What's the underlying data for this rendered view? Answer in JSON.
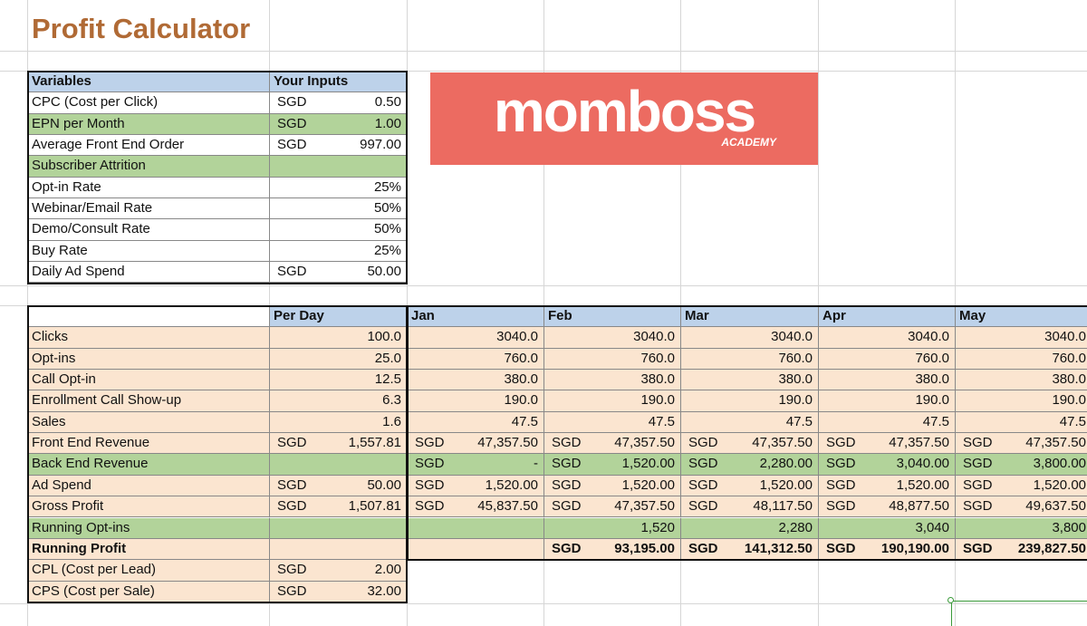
{
  "title": "Profit Calculator",
  "logo": {
    "main": "momboss",
    "sub": "ACADEMY"
  },
  "variables": {
    "header": [
      "Variables",
      "Your Inputs"
    ],
    "rows": [
      {
        "label": "CPC (Cost per Click)",
        "cur": "SGD",
        "value": "0.50",
        "style": "wht"
      },
      {
        "label": "EPN per Month",
        "cur": "SGD",
        "value": "1.00",
        "style": "grn"
      },
      {
        "label": "Average Front End Order",
        "cur": "SGD",
        "value": "997.00",
        "style": "wht"
      },
      {
        "label": "Subscriber Attrition",
        "cur": "",
        "value": "",
        "style": "grn"
      },
      {
        "label": "Opt-in Rate",
        "cur": "",
        "value": "25%",
        "style": "wht"
      },
      {
        "label": "Webinar/Email Rate",
        "cur": "",
        "value": "50%",
        "style": "wht"
      },
      {
        "label": "Demo/Consult Rate",
        "cur": "",
        "value": "50%",
        "style": "wht"
      },
      {
        "label": "Buy Rate",
        "cur": "",
        "value": "25%",
        "style": "wht"
      },
      {
        "label": "Daily Ad Spend",
        "cur": "SGD",
        "value": "50.00",
        "style": "wht"
      }
    ]
  },
  "projection": {
    "headers": [
      "Per Day",
      "Jan",
      "Feb",
      "Mar",
      "Apr",
      "May"
    ],
    "rows": [
      {
        "label": "Clicks",
        "style": "org",
        "bold": false,
        "cells": [
          [
            "",
            "100.0"
          ],
          [
            "",
            "3040.0"
          ],
          [
            "",
            "3040.0"
          ],
          [
            "",
            "3040.0"
          ],
          [
            "",
            "3040.0"
          ],
          [
            "",
            "3040.0"
          ]
        ]
      },
      {
        "label": "Opt-ins",
        "style": "org",
        "bold": false,
        "cells": [
          [
            "",
            "25.0"
          ],
          [
            "",
            "760.0"
          ],
          [
            "",
            "760.0"
          ],
          [
            "",
            "760.0"
          ],
          [
            "",
            "760.0"
          ],
          [
            "",
            "760.0"
          ]
        ]
      },
      {
        "label": "Call Opt-in",
        "style": "org",
        "bold": false,
        "cells": [
          [
            "",
            "12.5"
          ],
          [
            "",
            "380.0"
          ],
          [
            "",
            "380.0"
          ],
          [
            "",
            "380.0"
          ],
          [
            "",
            "380.0"
          ],
          [
            "",
            "380.0"
          ]
        ]
      },
      {
        "label": "Enrollment Call Show-up",
        "style": "org",
        "bold": false,
        "cells": [
          [
            "",
            "6.3"
          ],
          [
            "",
            "190.0"
          ],
          [
            "",
            "190.0"
          ],
          [
            "",
            "190.0"
          ],
          [
            "",
            "190.0"
          ],
          [
            "",
            "190.0"
          ]
        ]
      },
      {
        "label": "Sales",
        "style": "org",
        "bold": false,
        "cells": [
          [
            "",
            "1.6"
          ],
          [
            "",
            "47.5"
          ],
          [
            "",
            "47.5"
          ],
          [
            "",
            "47.5"
          ],
          [
            "",
            "47.5"
          ],
          [
            "",
            "47.5"
          ]
        ]
      },
      {
        "label": "Front End Revenue",
        "style": "org",
        "bold": false,
        "cells": [
          [
            "SGD",
            "1,557.81"
          ],
          [
            "SGD",
            "47,357.50"
          ],
          [
            "SGD",
            "47,357.50"
          ],
          [
            "SGD",
            "47,357.50"
          ],
          [
            "SGD",
            "47,357.50"
          ],
          [
            "SGD",
            "47,357.50"
          ]
        ]
      },
      {
        "label": "Back End Revenue",
        "style": "grn",
        "bold": false,
        "cells": [
          [
            "",
            ""
          ],
          [
            "SGD",
            "-"
          ],
          [
            "SGD",
            "1,520.00"
          ],
          [
            "SGD",
            "2,280.00"
          ],
          [
            "SGD",
            "3,040.00"
          ],
          [
            "SGD",
            "3,800.00"
          ]
        ]
      },
      {
        "label": "Ad Spend",
        "style": "org",
        "bold": false,
        "cells": [
          [
            "SGD",
            "50.00"
          ],
          [
            "SGD",
            "1,520.00"
          ],
          [
            "SGD",
            "1,520.00"
          ],
          [
            "SGD",
            "1,520.00"
          ],
          [
            "SGD",
            "1,520.00"
          ],
          [
            "SGD",
            "1,520.00"
          ]
        ]
      },
      {
        "label": "Gross Profit",
        "style": "org",
        "bold": false,
        "cells": [
          [
            "SGD",
            "1,507.81"
          ],
          [
            "SGD",
            "45,837.50"
          ],
          [
            "SGD",
            "47,357.50"
          ],
          [
            "SGD",
            "48,117.50"
          ],
          [
            "SGD",
            "48,877.50"
          ],
          [
            "SGD",
            "49,637.50"
          ]
        ]
      },
      {
        "label": "Running Opt-ins",
        "style": "grn",
        "bold": false,
        "cells": [
          [
            "",
            ""
          ],
          [
            "",
            ""
          ],
          [
            "",
            "1,520"
          ],
          [
            "",
            "2,280"
          ],
          [
            "",
            "3,040"
          ],
          [
            "",
            "3,800"
          ]
        ]
      },
      {
        "label": "Running Profit",
        "style": "org",
        "bold": true,
        "cells": [
          [
            "",
            ""
          ],
          [
            "",
            ""
          ],
          [
            "SGD",
            "93,195.00"
          ],
          [
            "SGD",
            "141,312.50"
          ],
          [
            "SGD",
            "190,190.00"
          ],
          [
            "SGD",
            "239,827.50"
          ]
        ]
      },
      {
        "label": "CPL (Cost per Lead)",
        "style": "org",
        "bold": false,
        "cells": [
          [
            "SGD",
            "2.00"
          ]
        ]
      },
      {
        "label": "CPS (Cost per Sale)",
        "style": "org",
        "bold": false,
        "cells": [
          [
            "SGD",
            "32.00"
          ]
        ]
      }
    ]
  }
}
